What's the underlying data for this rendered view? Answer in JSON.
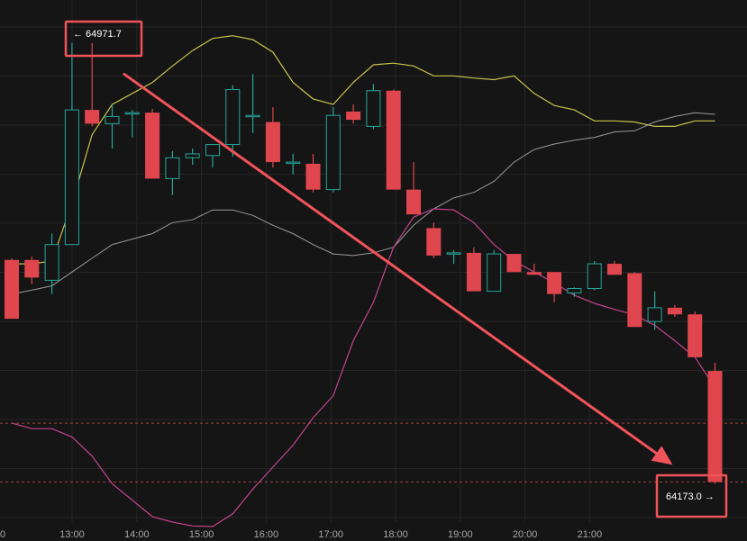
{
  "chart_data": {
    "type": "candlestick",
    "x_ticks": [
      "13:00",
      "14:00",
      "15:00",
      "16:00",
      "17:00",
      "18:00",
      "19:00",
      "20:00",
      "21:00"
    ],
    "x_tick_first_partial": "0",
    "ylim": [
      64100,
      65050
    ],
    "grid": true,
    "colors": {
      "up": "#26a69a",
      "down": "#e0464d",
      "upper_band": "#c8c24a",
      "middle_band": "#bdbdbd",
      "lower_band": "#c2448f",
      "arrow": "#f0545a",
      "callout_border": "#f0545a",
      "dashed_line": "#c0504d"
    },
    "candles": [
      {
        "t": 0,
        "o": 64577,
        "h": 64580,
        "l": 64470,
        "c": 64470
      },
      {
        "t": 1,
        "o": 64577,
        "h": 64583,
        "l": 64533,
        "c": 64545
      },
      {
        "t": 2,
        "o": 64540,
        "h": 64625,
        "l": 64515,
        "c": 64605
      },
      {
        "t": 3,
        "o": 64605,
        "h": 64971.7,
        "l": 64605,
        "c": 64850
      },
      {
        "t": 4,
        "o": 64850,
        "h": 64971.7,
        "l": 64820,
        "c": 64825
      },
      {
        "t": 5,
        "o": 64825,
        "h": 64860,
        "l": 64780,
        "c": 64838
      },
      {
        "t": 6,
        "o": 64845,
        "h": 64850,
        "l": 64800,
        "c": 64845
      },
      {
        "t": 7,
        "o": 64845,
        "h": 64852,
        "l": 64725,
        "c": 64725
      },
      {
        "t": 8,
        "o": 64725,
        "h": 64775,
        "l": 64695,
        "c": 64763
      },
      {
        "t": 9,
        "o": 64763,
        "h": 64780,
        "l": 64750,
        "c": 64770
      },
      {
        "t": 10,
        "o": 64767,
        "h": 64785,
        "l": 64745,
        "c": 64787
      },
      {
        "t": 11,
        "o": 64787,
        "h": 64895,
        "l": 64765,
        "c": 64887
      },
      {
        "t": 12,
        "o": 64840,
        "h": 64915,
        "l": 64808,
        "c": 64840
      },
      {
        "t": 13,
        "o": 64828,
        "h": 64855,
        "l": 64745,
        "c": 64755
      },
      {
        "t": 14,
        "o": 64755,
        "h": 64770,
        "l": 64733,
        "c": 64755
      },
      {
        "t": 15,
        "o": 64752,
        "h": 64770,
        "l": 64700,
        "c": 64705
      },
      {
        "t": 16,
        "o": 64705,
        "h": 64855,
        "l": 64700,
        "c": 64840
      },
      {
        "t": 17,
        "o": 64847,
        "h": 64860,
        "l": 64825,
        "c": 64832
      },
      {
        "t": 18,
        "o": 64820,
        "h": 64897,
        "l": 64815,
        "c": 64885
      },
      {
        "t": 19,
        "o": 64885,
        "h": 64887,
        "l": 64705,
        "c": 64705
      },
      {
        "t": 20,
        "o": 64705,
        "h": 64755,
        "l": 64660,
        "c": 64660
      },
      {
        "t": 21,
        "o": 64635,
        "h": 64645,
        "l": 64580,
        "c": 64585
      },
      {
        "t": 22,
        "o": 64590,
        "h": 64595,
        "l": 64570,
        "c": 64590
      },
      {
        "t": 23,
        "o": 64590,
        "h": 64600,
        "l": 64520,
        "c": 64520
      },
      {
        "t": 24,
        "o": 64520,
        "h": 64595,
        "l": 64520,
        "c": 64588
      },
      {
        "t": 25,
        "o": 64588,
        "h": 64588,
        "l": 64555,
        "c": 64555
      },
      {
        "t": 26,
        "o": 64555,
        "h": 64570,
        "l": 64550,
        "c": 64550
      },
      {
        "t": 27,
        "o": 64555,
        "h": 64555,
        "l": 64500,
        "c": 64515
      },
      {
        "t": 28,
        "o": 64517,
        "h": 64527,
        "l": 64510,
        "c": 64525
      },
      {
        "t": 29,
        "o": 64525,
        "h": 64575,
        "l": 64522,
        "c": 64570
      },
      {
        "t": 30,
        "o": 64570,
        "h": 64575,
        "l": 64550,
        "c": 64550
      },
      {
        "t": 31,
        "o": 64553,
        "h": 64555,
        "l": 64455,
        "c": 64455
      },
      {
        "t": 32,
        "o": 64465,
        "h": 64520,
        "l": 64450,
        "c": 64490
      },
      {
        "t": 33,
        "o": 64490,
        "h": 64495,
        "l": 64473,
        "c": 64478
      },
      {
        "t": 34,
        "o": 64478,
        "h": 64483,
        "l": 64400,
        "c": 64400
      },
      {
        "t": 35,
        "o": 64375,
        "h": 64390,
        "l": 64170,
        "c": 64173
      }
    ],
    "bands": {
      "upper": [
        64570,
        64570,
        64575,
        64680,
        64805,
        64860,
        64880,
        64900,
        64930,
        64958,
        64980,
        64985,
        64978,
        64955,
        64900,
        64870,
        64860,
        64900,
        64932,
        64935,
        64930,
        64912,
        64912,
        64908,
        64905,
        64912,
        64880,
        64858,
        64850,
        64830,
        64830,
        64828,
        64820,
        64820,
        64830,
        64830
      ],
      "middle": [
        64515,
        64522,
        64530,
        64555,
        64580,
        64605,
        64615,
        64625,
        64645,
        64650,
        64668,
        64668,
        64658,
        64640,
        64625,
        64605,
        64588,
        64585,
        64590,
        64600,
        64640,
        64670,
        64690,
        64700,
        64720,
        64755,
        64778,
        64788,
        64795,
        64800,
        64810,
        64812,
        64828,
        64838,
        64845,
        64842
      ],
      "lower": [
        64280,
        64270,
        64270,
        64255,
        64220,
        64170,
        64140,
        64110,
        64100,
        64093,
        64092,
        64115,
        64160,
        64200,
        64240,
        64290,
        64330,
        64430,
        64500,
        64600,
        64655,
        64670,
        64668,
        64645,
        64605,
        64575,
        64555,
        64535,
        64513,
        64498,
        64487,
        64477,
        64458,
        64430,
        64400,
        64345
      ]
    },
    "callouts": [
      {
        "label": "← 64971.7",
        "side": "top"
      },
      {
        "label": "64173.0 →",
        "side": "bottom"
      }
    ],
    "dashed_levels": [
      64280,
      64173
    ],
    "arrow": {
      "from_t": 5.6,
      "from_y": 64915,
      "to_t": 35,
      "to_y": 64210
    }
  }
}
